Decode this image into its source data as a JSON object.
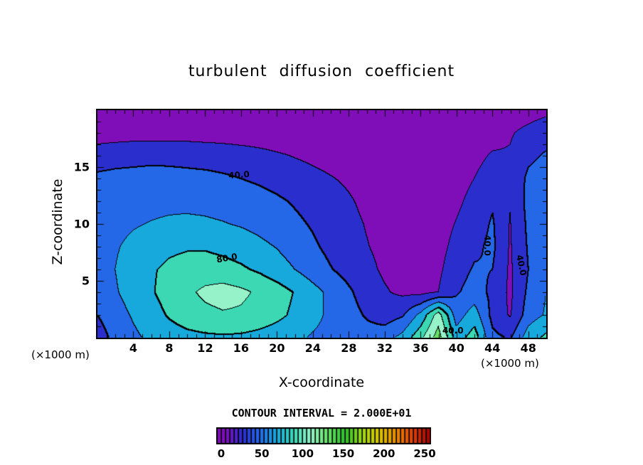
{
  "title": "turbulent diffusion coefficient",
  "axes": {
    "x_label": "X-coordinate",
    "z_label": "Z-coordinate",
    "x_unit_left": "(×1000 m)",
    "x_unit_right": "(×1000 m)",
    "x_tick_values": [
      4,
      8,
      12,
      16,
      20,
      24,
      28,
      32,
      36,
      40,
      44,
      48
    ],
    "y_tick_values": [
      5,
      10,
      15
    ]
  },
  "contour_note": "CONTOUR INTERVAL = 2.000E+01",
  "colorbar": {
    "min": 0,
    "max": 250,
    "tick_values": [
      0,
      50,
      100,
      150,
      200,
      250
    ]
  },
  "chart_data": {
    "type": "heatmap",
    "title": "turbulent diffusion coefficient",
    "xlabel": "X-coordinate (×1000 m)",
    "ylabel": "Z-coordinate (×1000 m)",
    "x_range": [
      0,
      50
    ],
    "z_range": [
      0,
      20
    ],
    "contour_interval": 20,
    "contour_interval_label": "2.000E+01",
    "legend": "horizontal colorbar 0-250, rainbow (purple-blue-cyan-green-yellow-red)",
    "contour_labels": [
      {
        "text": "40.0",
        "x": 15.8,
        "z": 14.3,
        "rot_deg": -4
      },
      {
        "text": "80.0",
        "x": 14.4,
        "z": 7.0,
        "rot_deg": -10
      },
      {
        "text": "40.0",
        "x": 43.4,
        "z": 8.1,
        "rot_deg": 90
      },
      {
        "text": "40.0",
        "x": 47.2,
        "z": 6.4,
        "rot_deg": 78
      },
      {
        "text": "40.0",
        "x": 39.6,
        "z": 0.6,
        "rot_deg": 0
      }
    ],
    "fill_colors": [
      "#7F0EB8",
      "#2A2ECC",
      "#2468E8",
      "#17A8DC",
      "#3CD8B4",
      "#96F2C8",
      "#66E066",
      "#2CBE2C",
      "#9CD818",
      "#D8C400",
      "#E68A00",
      "#DC3C0C",
      "#9A0000"
    ],
    "grid": {
      "x": [
        0,
        2,
        4,
        6,
        8,
        10,
        12,
        14,
        16,
        18,
        20,
        22,
        24,
        26,
        28,
        30,
        32,
        34,
        36,
        38,
        40,
        42,
        44,
        46,
        48,
        50
      ],
      "z": [
        0,
        2,
        4,
        6,
        8,
        10,
        12,
        14,
        16,
        18,
        20
      ],
      "values": [
        [
          30,
          46,
          56,
          64,
          70,
          74,
          76,
          77,
          76,
          73,
          69,
          64,
          58,
          54,
          50,
          48,
          52,
          66,
          95,
          130,
          70,
          90,
          45,
          38,
          70,
          85
        ],
        [
          40,
          52,
          62,
          72,
          82,
          90,
          95,
          98,
          97,
          92,
          85,
          76,
          66,
          56,
          47,
          38,
          30,
          38,
          65,
          110,
          50,
          70,
          34,
          18,
          50,
          62
        ],
        [
          48,
          58,
          68,
          78,
          88,
          96,
          104,
          108,
          104,
          97,
          89,
          79,
          67,
          55,
          43,
          31,
          22,
          16,
          14,
          20,
          38,
          48,
          36,
          16,
          44,
          60
        ],
        [
          50,
          60,
          70,
          78,
          84,
          88,
          89,
          87,
          83,
          77,
          69,
          60,
          50,
          41,
          33,
          25,
          17,
          13,
          11,
          16,
          32,
          42,
          40,
          17,
          40,
          58
        ],
        [
          51,
          58,
          65,
          71,
          76,
          78,
          78,
          75,
          71,
          65,
          59,
          51,
          43,
          35,
          28,
          21,
          15,
          11,
          9,
          13,
          26,
          36,
          44,
          18,
          42,
          56
        ],
        [
          50,
          54,
          58,
          61,
          63,
          64,
          63,
          61,
          58,
          54,
          49,
          44,
          38,
          31,
          25,
          19,
          13,
          9,
          8,
          11,
          21,
          31,
          42,
          19,
          44,
          52
        ],
        [
          47,
          50,
          52,
          54,
          55,
          55,
          54,
          52,
          50,
          47,
          43,
          38,
          33,
          28,
          22,
          16,
          11,
          8,
          7,
          9,
          16,
          26,
          38,
          21,
          46,
          50
        ],
        [
          44,
          46,
          47,
          48,
          47,
          46,
          45,
          43,
          40,
          37,
          33,
          29,
          25,
          21,
          17,
          13,
          9,
          7,
          6,
          7,
          12,
          20,
          30,
          24,
          44,
          48
        ],
        [
          30,
          32,
          33,
          34,
          34,
          33,
          32,
          30,
          28,
          25,
          22,
          19,
          16,
          13,
          11,
          9,
          7,
          6,
          5,
          6,
          9,
          14,
          22,
          22,
          36,
          42
        ],
        [
          10,
          11,
          12,
          12,
          12,
          12,
          11,
          11,
          10,
          10,
          9,
          9,
          8,
          8,
          7,
          7,
          6,
          5,
          5,
          5,
          6,
          8,
          12,
          18,
          26,
          34
        ],
        [
          5,
          5,
          5,
          5,
          5,
          5,
          5,
          5,
          5,
          5,
          5,
          5,
          5,
          5,
          5,
          5,
          5,
          5,
          5,
          5,
          5,
          5,
          6,
          8,
          10,
          14
        ]
      ]
    }
  }
}
